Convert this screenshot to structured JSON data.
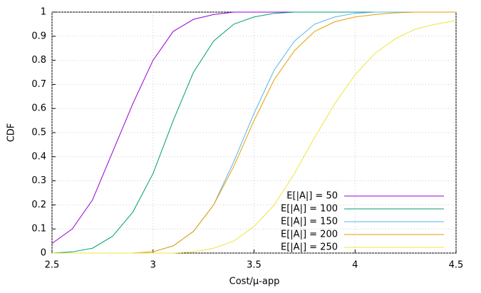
{
  "chart_data": {
    "type": "line",
    "xlabel": "Cost/µ-app",
    "ylabel": "CDF",
    "x": [
      2.5,
      2.6,
      2.7,
      2.8,
      2.9,
      3.0,
      3.1,
      3.2,
      3.3,
      3.4,
      3.5,
      3.6,
      3.7,
      3.8,
      3.9,
      4.0,
      4.1,
      4.2,
      4.3,
      4.4,
      4.5
    ],
    "series": [
      {
        "name": "E[|A|] = 50",
        "color": "#9400d3",
        "values": [
          0.04,
          0.1,
          0.22,
          0.42,
          0.62,
          0.8,
          0.92,
          0.97,
          0.99,
          1,
          1,
          1,
          1,
          1,
          1,
          1,
          1,
          1,
          1,
          1,
          1
        ]
      },
      {
        "name": "E[|A|] = 100",
        "color": "#009e73",
        "values": [
          0,
          0.005,
          0.02,
          0.07,
          0.17,
          0.33,
          0.55,
          0.75,
          0.88,
          0.95,
          0.98,
          0.995,
          1,
          1,
          1,
          1,
          1,
          1,
          1,
          1,
          1
        ]
      },
      {
        "name": "E[|A|] = 150",
        "color": "#56b4e9",
        "values": [
          0,
          0,
          0,
          0,
          0,
          0.005,
          0.03,
          0.09,
          0.2,
          0.38,
          0.58,
          0.76,
          0.88,
          0.95,
          0.98,
          0.995,
          1,
          1,
          1,
          1,
          1
        ]
      },
      {
        "name": "E[|A|] = 200",
        "color": "#e69f00",
        "values": [
          0,
          0,
          0,
          0,
          0,
          0.005,
          0.03,
          0.09,
          0.2,
          0.36,
          0.55,
          0.72,
          0.84,
          0.92,
          0.96,
          0.98,
          0.99,
          0.997,
          1,
          1,
          1
        ]
      },
      {
        "name": "E[|A|] = 250",
        "color": "#f0e442",
        "values": [
          0,
          0,
          0,
          0,
          0,
          0,
          0,
          0.005,
          0.02,
          0.05,
          0.11,
          0.2,
          0.33,
          0.48,
          0.62,
          0.74,
          0.83,
          0.89,
          0.93,
          0.95,
          0.965
        ]
      }
    ],
    "xlim": [
      2.5,
      4.5
    ],
    "xticks": [
      2.5,
      3,
      3.5,
      4,
      4.5
    ],
    "ylim": [
      0,
      1
    ],
    "yticks": [
      0,
      0.1,
      0.2,
      0.3,
      0.4,
      0.5,
      0.6,
      0.7,
      0.8,
      0.9,
      1
    ],
    "grid": true,
    "legend": "lower right"
  }
}
